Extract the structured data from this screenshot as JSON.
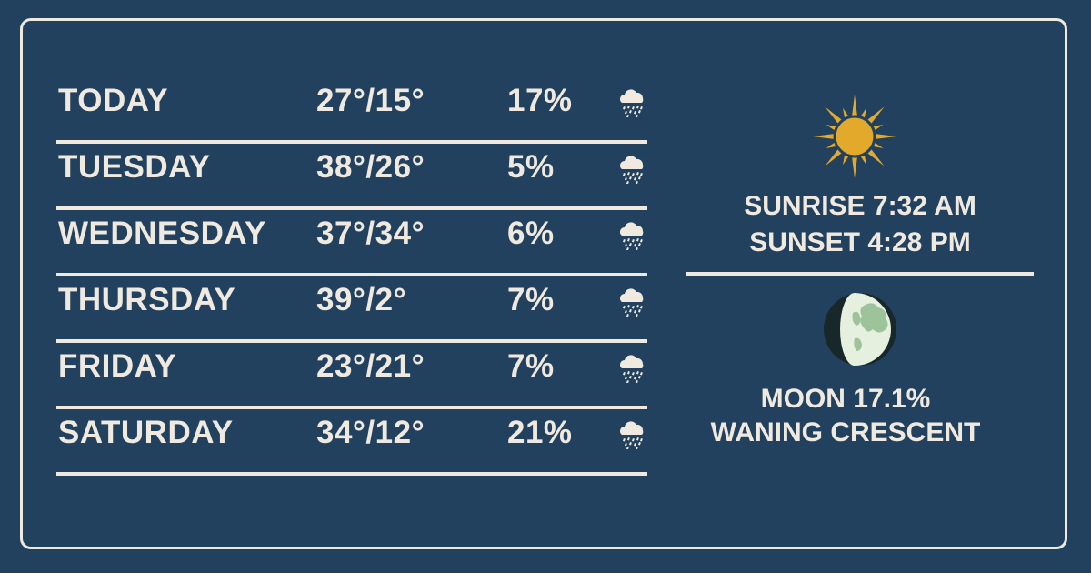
{
  "forecast": [
    {
      "day": "TODAY",
      "temp": "27°/15°",
      "precip": "17%",
      "icon": "rain-cloud-icon"
    },
    {
      "day": "TUESDAY",
      "temp": "38°/26°",
      "precip": "5%",
      "icon": "rain-cloud-icon"
    },
    {
      "day": "WEDNESDAY",
      "temp": "37°/34°",
      "precip": "6%",
      "icon": "rain-cloud-icon"
    },
    {
      "day": "THURSDAY",
      "temp": "39°/2°",
      "precip": "7%",
      "icon": "rain-cloud-icon"
    },
    {
      "day": "FRIDAY",
      "temp": "23°/21°",
      "precip": "7%",
      "icon": "rain-cloud-icon"
    },
    {
      "day": "SATURDAY",
      "temp": "34°/12°",
      "precip": "21%",
      "icon": "rain-cloud-icon"
    }
  ],
  "sun": {
    "icon": "sun-icon",
    "sunrise": "SUNRISE 7:32 AM",
    "sunset": "SUNSET 4:28 PM"
  },
  "moon": {
    "icon": "waning-crescent-moon-icon",
    "illumination": "MOON 17.1%",
    "phase": "WANING CRESCENT"
  },
  "colors": {
    "background": "#21415f",
    "text": "#efe9df",
    "sun": "#e3a92a",
    "moon": "#dfeed8"
  }
}
